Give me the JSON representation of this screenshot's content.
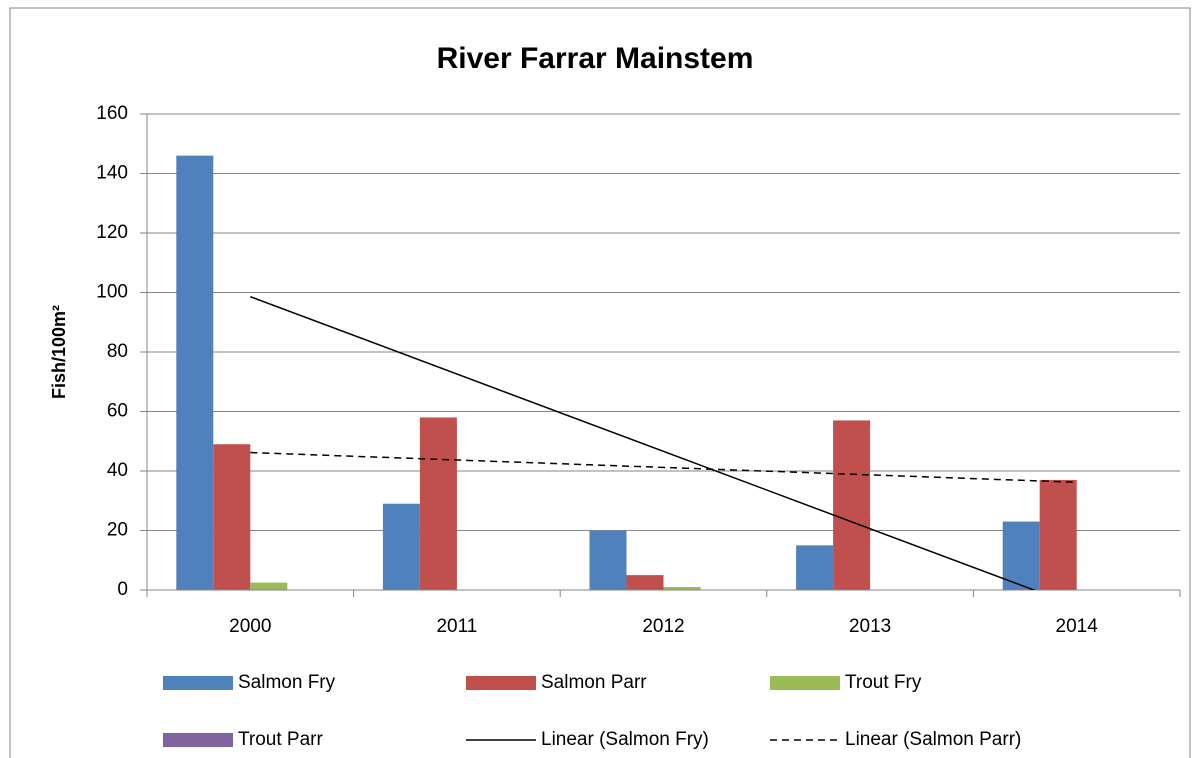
{
  "chart_data": {
    "type": "bar",
    "title": "River Farrar Mainstem",
    "y_label": "Fish/100m²",
    "categories": [
      "2000",
      "2011",
      "2012",
      "2013",
      "2014"
    ],
    "series": [
      {
        "name": "Salmon Fry",
        "color": "#4f81bd",
        "values": [
          146,
          29,
          20,
          15,
          23
        ]
      },
      {
        "name": "Salmon Parr",
        "color": "#c0504d",
        "values": [
          49,
          58,
          5,
          57,
          37
        ]
      },
      {
        "name": "Trout Fry",
        "color": "#9bbb59",
        "values": [
          2.5,
          0,
          1,
          0,
          0
        ]
      },
      {
        "name": "Trout Parr",
        "color": "#8064a2",
        "values": [
          0,
          0,
          0,
          0,
          0
        ]
      }
    ],
    "trendlines": [
      {
        "name": "Linear (Salmon Fry)",
        "dash": false,
        "values": [
          98.6,
          -5.4
        ]
      },
      {
        "name": "Linear (Salmon Parr)",
        "dash": true,
        "values": [
          46.2,
          36.2
        ]
      }
    ],
    "ylim": [
      0,
      160
    ],
    "yticks": [
      0,
      20,
      40,
      60,
      80,
      100,
      120,
      140,
      160
    ],
    "grid": true
  }
}
